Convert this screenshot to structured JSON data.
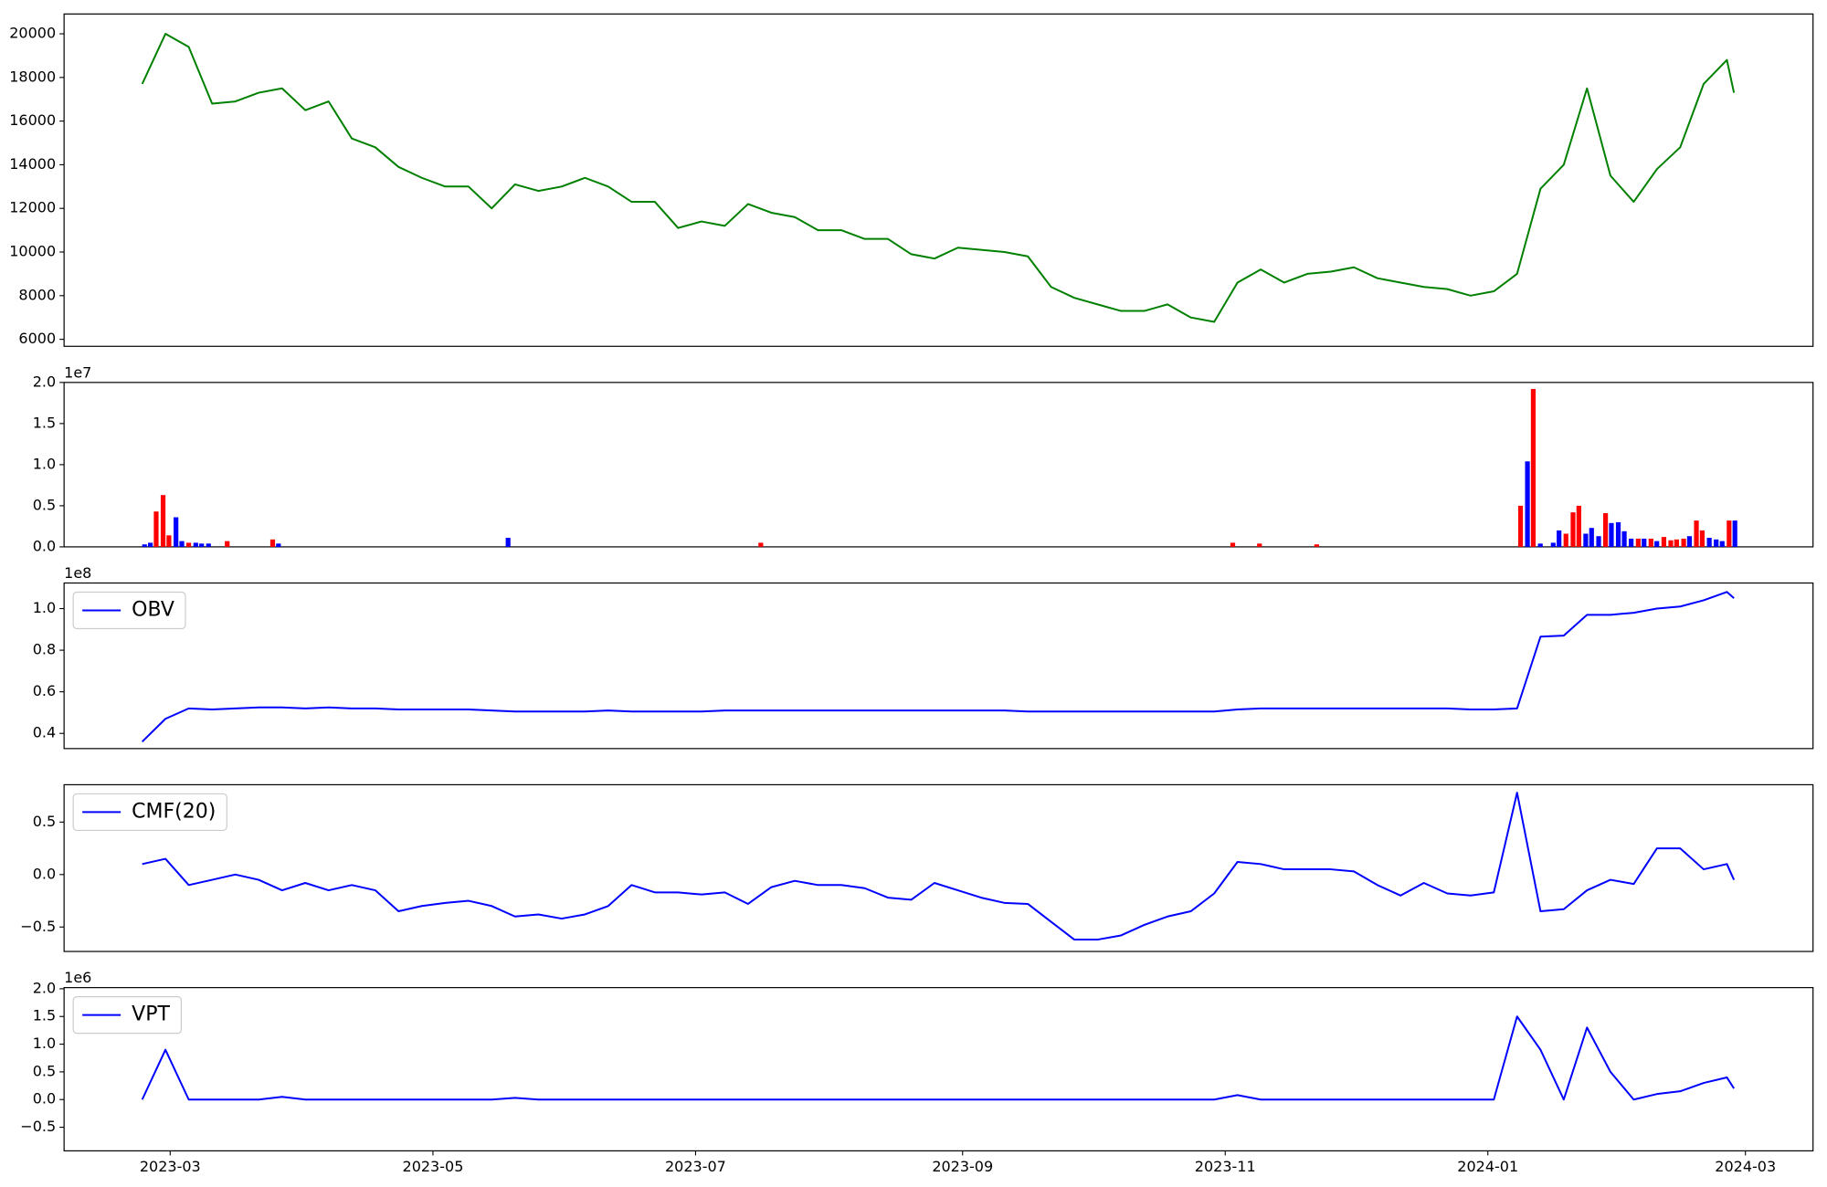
{
  "chart_data": [
    {
      "type": "line",
      "x": [
        2023.1438,
        2023.1586,
        2023.1734,
        2023.1883,
        2023.2031,
        2023.2179,
        2023.2328,
        2023.2476,
        2023.2624,
        2023.2772,
        2023.2921,
        2023.3069,
        2023.3217,
        2023.3366,
        2023.3514,
        2023.3662,
        2023.381,
        2023.3959,
        2023.4107,
        2023.4255,
        2023.4403,
        2023.4552,
        2023.47,
        2023.4848,
        2023.4997,
        2023.5145,
        2023.5293,
        2023.5441,
        2023.559,
        2023.5738,
        2023.5886,
        2023.6035,
        2023.6183,
        2023.6331,
        2023.6479,
        2023.6628,
        2023.6776,
        2023.6924,
        2023.7073,
        2023.7221,
        2023.7369,
        2023.7517,
        2023.7666,
        2023.7814,
        2023.7962,
        2023.811,
        2023.8259,
        2023.8407,
        2023.8555,
        2023.8704,
        2023.8852,
        2023.9,
        2023.9148,
        2023.9297,
        2023.9445,
        2023.9593,
        2023.9742,
        2023.989,
        2024.0038,
        2024.0186,
        2024.0335,
        2024.0483,
        2024.0631,
        2024.078,
        2024.0928,
        2024.1076,
        2024.1224,
        2024.1373,
        2024.1521,
        2024.1566
      ],
      "series": [
        {
          "color": "#008000",
          "values": [
            17700,
            20000,
            19400,
            16800,
            16900,
            17300,
            17500,
            16500,
            16900,
            15200,
            14800,
            13900,
            13400,
            13000,
            13000,
            12000,
            13100,
            12800,
            13000,
            13400,
            13000,
            12300,
            12300,
            11100,
            11400,
            11200,
            12200,
            11800,
            11600,
            11000,
            11000,
            10600,
            10600,
            9900,
            9700,
            10200,
            10100,
            10000,
            9800,
            8400,
            7900,
            7600,
            7300,
            7300,
            7600,
            7000,
            6800,
            8600,
            9200,
            8600,
            9000,
            9100,
            9300,
            8800,
            8600,
            8400,
            8300,
            8000,
            8200,
            9000,
            12900,
            14000,
            17500,
            13500,
            12300,
            13800,
            14800,
            17700,
            18800,
            17300
          ]
        }
      ],
      "xlim": [
        2023.0941,
        2024.2069
      ],
      "ylim": [
        5679,
        20908
      ],
      "yticks": [
        6000,
        8000,
        10000,
        12000,
        14000,
        16000,
        18000,
        20000
      ]
    },
    {
      "type": "bar",
      "x": [
        2023.1453,
        2023.149,
        2023.1527,
        2023.1571,
        2023.1608,
        2023.1653,
        2023.169,
        2023.1734,
        2023.1779,
        2023.1816,
        2023.186,
        2023.1979,
        2023.2268,
        2023.2305,
        2023.3766,
        2023.5374,
        2023.8377,
        2023.8547,
        2023.8911,
        2024.0208,
        2024.0252,
        2024.0289,
        2024.0334,
        2024.0416,
        2024.0453,
        2024.0497,
        2024.0542,
        2024.0579,
        2024.0623,
        2024.066,
        2024.0705,
        2024.0749,
        2024.0786,
        2024.083,
        2024.0868,
        2024.0912,
        2024.0957,
        2024.0994,
        2024.1038,
        2024.1075,
        2024.112,
        2024.1164,
        2024.1201,
        2024.1246,
        2024.1283,
        2024.1327,
        2024.1364,
        2024.1409,
        2024.1453,
        2024.1491,
        2024.1535,
        2024.1572
      ],
      "values": [
        300000,
        500000,
        4300000,
        6300000,
        1400000,
        3600000,
        700000,
        500000,
        500000,
        400000,
        400000,
        700000,
        900000,
        400000,
        1100000,
        500000,
        500000,
        400000,
        300000,
        5000000,
        10400000,
        19200000,
        400000,
        500000,
        2000000,
        1600000,
        4200000,
        5000000,
        1600000,
        2300000,
        1300000,
        4100000,
        2900000,
        3000000,
        1900000,
        1000000,
        1000000,
        1000000,
        1000000,
        700000,
        1200000,
        800000,
        900000,
        1000000,
        1300000,
        3200000,
        2000000,
        1100000,
        900000,
        700000,
        3200000,
        3200000
      ],
      "colors": [
        "#0000ff",
        "#0000ff",
        "#ff0000",
        "#ff0000",
        "#ff0000",
        "#0000ff",
        "#0000ff",
        "#ff0000",
        "#0000ff",
        "#0000ff",
        "#0000ff",
        "#ff0000",
        "#ff0000",
        "#0000ff",
        "#0000ff",
        "#ff0000",
        "#ff0000",
        "#ff0000",
        "#ff0000",
        "#ff0000",
        "#0000ff",
        "#ff0000",
        "#0000ff",
        "#0000ff",
        "#0000ff",
        "#ff0000",
        "#ff0000",
        "#ff0000",
        "#0000ff",
        "#0000ff",
        "#0000ff",
        "#ff0000",
        "#0000ff",
        "#0000ff",
        "#0000ff",
        "#0000ff",
        "#ff0000",
        "#0000ff",
        "#ff0000",
        "#0000ff",
        "#ff0000",
        "#ff0000",
        "#ff0000",
        "#ff0000",
        "#0000ff",
        "#ff0000",
        "#ff0000",
        "#0000ff",
        "#0000ff",
        "#0000ff",
        "#ff0000",
        "#0000ff"
      ],
      "xlim": [
        2023.0941,
        2024.2069
      ],
      "ylim": [
        0,
        20000000
      ],
      "yticks": [
        {
          "value": 0,
          "label": "0.0"
        },
        {
          "value": 5000000,
          "label": "0.5"
        },
        {
          "value": 10000000,
          "label": "1.0"
        },
        {
          "value": 15000000,
          "label": "1.5"
        },
        {
          "value": 20000000,
          "label": "2.0"
        }
      ],
      "y_offset_label": "1e7"
    },
    {
      "type": "line",
      "x": [
        2023.1438,
        2023.1586,
        2023.1734,
        2023.1883,
        2023.2031,
        2023.2179,
        2023.2328,
        2023.2476,
        2023.2624,
        2023.2772,
        2023.2921,
        2023.3069,
        2023.3217,
        2023.3366,
        2023.3514,
        2023.3662,
        2023.381,
        2023.3959,
        2023.4107,
        2023.4255,
        2023.4403,
        2023.4552,
        2023.47,
        2023.4848,
        2023.4997,
        2023.5145,
        2023.5293,
        2023.5441,
        2023.559,
        2023.5738,
        2023.5886,
        2023.6035,
        2023.6183,
        2023.6331,
        2023.6479,
        2023.6628,
        2023.6776,
        2023.6924,
        2023.7073,
        2023.7221,
        2023.7369,
        2023.7517,
        2023.7666,
        2023.7814,
        2023.7962,
        2023.811,
        2023.8259,
        2023.8407,
        2023.8555,
        2023.8704,
        2023.8852,
        2023.9,
        2023.9148,
        2023.9297,
        2023.9445,
        2023.9593,
        2023.9742,
        2023.989,
        2024.0038,
        2024.0186,
        2024.0335,
        2024.0483,
        2024.0631,
        2024.078,
        2024.0928,
        2024.1076,
        2024.1224,
        2024.1373,
        2024.1521,
        2024.1566
      ],
      "series": [
        {
          "name": "OBV",
          "color": "#0000ff",
          "values": [
            36000000,
            47000000,
            52000000,
            51500000,
            52000000,
            52500000,
            52500000,
            52000000,
            52500000,
            52000000,
            52000000,
            51500000,
            51500000,
            51500000,
            51500000,
            51000000,
            50500000,
            50500000,
            50500000,
            50500000,
            51000000,
            50500000,
            50500000,
            50500000,
            50500000,
            51000000,
            51000000,
            51000000,
            51000000,
            51000000,
            51000000,
            51000000,
            51000000,
            51000000,
            51000000,
            51000000,
            51000000,
            51000000,
            50500000,
            50500000,
            50500000,
            50500000,
            50500000,
            50500000,
            50500000,
            50500000,
            50500000,
            51500000,
            52000000,
            52000000,
            52000000,
            52000000,
            52000000,
            52000000,
            52000000,
            52000000,
            52000000,
            51500000,
            51500000,
            52000000,
            86500000,
            87000000,
            97000000,
            97000000,
            98000000,
            100000000,
            101000000,
            104000000,
            108000000,
            105000000
          ]
        }
      ],
      "xlim": [
        2023.0941,
        2024.2069
      ],
      "ylim": [
        32700000,
        112300000
      ],
      "yticks": [
        {
          "value": 40000000,
          "label": "0.4"
        },
        {
          "value": 60000000,
          "label": "0.6"
        },
        {
          "value": 80000000,
          "label": "0.8"
        },
        {
          "value": 100000000,
          "label": "1.0"
        }
      ],
      "y_offset_label": "1e8",
      "legend": "upper left"
    },
    {
      "type": "line",
      "x": [
        2023.1438,
        2023.1586,
        2023.1734,
        2023.1883,
        2023.2031,
        2023.2179,
        2023.2328,
        2023.2476,
        2023.2624,
        2023.2772,
        2023.2921,
        2023.3069,
        2023.3217,
        2023.3366,
        2023.3514,
        2023.3662,
        2023.381,
        2023.3959,
        2023.4107,
        2023.4255,
        2023.4403,
        2023.4552,
        2023.47,
        2023.4848,
        2023.4997,
        2023.5145,
        2023.5293,
        2023.5441,
        2023.559,
        2023.5738,
        2023.5886,
        2023.6035,
        2023.6183,
        2023.6331,
        2023.6479,
        2023.6628,
        2023.6776,
        2023.6924,
        2023.7073,
        2023.7221,
        2023.7369,
        2023.7517,
        2023.7666,
        2023.7814,
        2023.7962,
        2023.811,
        2023.8259,
        2023.8407,
        2023.8555,
        2023.8704,
        2023.8852,
        2023.9,
        2023.9148,
        2023.9297,
        2023.9445,
        2023.9593,
        2023.9742,
        2023.989,
        2024.0038,
        2024.0186,
        2024.0335,
        2024.0483,
        2024.0631,
        2024.078,
        2024.0928,
        2024.1076,
        2024.1224,
        2024.1373,
        2024.1521,
        2024.1566
      ],
      "series": [
        {
          "name": "CMF(20)",
          "color": "#0000ff",
          "values": [
            0.1,
            0.15,
            -0.1,
            -0.05,
            0,
            -0.05,
            -0.15,
            -0.08,
            -0.15,
            -0.1,
            -0.15,
            -0.35,
            -0.3,
            -0.27,
            -0.25,
            -0.3,
            -0.4,
            -0.38,
            -0.42,
            -0.38,
            -0.3,
            -0.1,
            -0.17,
            -0.17,
            -0.19,
            -0.17,
            -0.28,
            -0.12,
            -0.06,
            -0.1,
            -0.1,
            -0.13,
            -0.22,
            -0.24,
            -0.08,
            -0.15,
            -0.22,
            -0.27,
            -0.28,
            -0.45,
            -0.62,
            -0.62,
            -0.58,
            -0.48,
            -0.4,
            -0.35,
            -0.18,
            0.12,
            0.1,
            0.05,
            0.05,
            0.05,
            0.03,
            -0.1,
            -0.2,
            -0.08,
            -0.18,
            -0.2,
            -0.17,
            0.78,
            -0.35,
            -0.33,
            -0.15,
            -0.05,
            -0.09,
            0.25,
            0.25,
            0.05,
            0.1,
            -0.05
          ]
        }
      ],
      "xlim": [
        2023.0941,
        2024.2069
      ],
      "ylim": [
        -0.733,
        0.856
      ],
      "yticks": [
        {
          "value": -0.5,
          "label": "−0.5"
        },
        {
          "value": 0,
          "label": "0.0"
        },
        {
          "value": 0.5,
          "label": "0.5"
        }
      ],
      "legend": "upper left"
    },
    {
      "type": "line",
      "x": [
        2023.1438,
        2023.1586,
        2023.1734,
        2023.1883,
        2023.2031,
        2023.2179,
        2023.2328,
        2023.2476,
        2023.2624,
        2023.2772,
        2023.2921,
        2023.3069,
        2023.3217,
        2023.3366,
        2023.3514,
        2023.3662,
        2023.381,
        2023.3959,
        2023.4107,
        2023.4255,
        2023.4403,
        2023.4552,
        2023.47,
        2023.4848,
        2023.4997,
        2023.5145,
        2023.5293,
        2023.5441,
        2023.559,
        2023.5738,
        2023.5886,
        2023.6035,
        2023.6183,
        2023.6331,
        2023.6479,
        2023.6628,
        2023.6776,
        2023.6924,
        2023.7073,
        2023.7221,
        2023.7369,
        2023.7517,
        2023.7666,
        2023.7814,
        2023.7962,
        2023.811,
        2023.8259,
        2023.8407,
        2023.8555,
        2023.8704,
        2023.8852,
        2023.9,
        2023.9148,
        2023.9297,
        2023.9445,
        2023.9593,
        2023.9742,
        2023.989,
        2024.0038,
        2024.0186,
        2024.0335,
        2024.0483,
        2024.0631,
        2024.078,
        2024.0928,
        2024.1076,
        2024.1224,
        2024.1373,
        2024.1521,
        2024.1566
      ],
      "series": [
        {
          "name": "VPT",
          "color": "#0000ff",
          "values": [
            0,
            900000,
            0,
            0,
            0,
            0,
            50000,
            0,
            0,
            0,
            0,
            0,
            0,
            0,
            0,
            0,
            30000,
            0,
            0,
            0,
            0,
            0,
            0,
            0,
            0,
            0,
            0,
            0,
            0,
            0,
            0,
            0,
            0,
            0,
            0,
            0,
            0,
            0,
            0,
            0,
            0,
            0,
            0,
            0,
            0,
            0,
            0,
            80000,
            0,
            0,
            0,
            0,
            0,
            0,
            0,
            0,
            0,
            0,
            0,
            1500000,
            900000,
            0,
            1300000,
            500000,
            0,
            100000,
            150000,
            300000,
            400000,
            200000
          ]
        }
      ],
      "xlim": [
        2023.0941,
        2024.2069
      ],
      "ylim": [
        -926000,
        2021000
      ],
      "yticks": [
        {
          "value": -500000,
          "label": "−0.5"
        },
        {
          "value": 0,
          "label": "0.0"
        },
        {
          "value": 500000,
          "label": "0.5"
        },
        {
          "value": 1000000,
          "label": "1.0"
        },
        {
          "value": 1500000,
          "label": "1.5"
        },
        {
          "value": 2000000,
          "label": "2.0"
        }
      ],
      "xticks": [
        {
          "value": 2023.1616,
          "label": "2023-03"
        },
        {
          "value": 2023.3288,
          "label": "2023-05"
        },
        {
          "value": 2023.4959,
          "label": "2023-07"
        },
        {
          "value": 2023.6658,
          "label": "2023-09"
        },
        {
          "value": 2023.8329,
          "label": "2023-11"
        },
        {
          "value": 2024.0,
          "label": "2024-01"
        },
        {
          "value": 2024.1639,
          "label": "2024-03"
        }
      ],
      "y_offset_label": "1e6",
      "legend": "upper left"
    }
  ]
}
